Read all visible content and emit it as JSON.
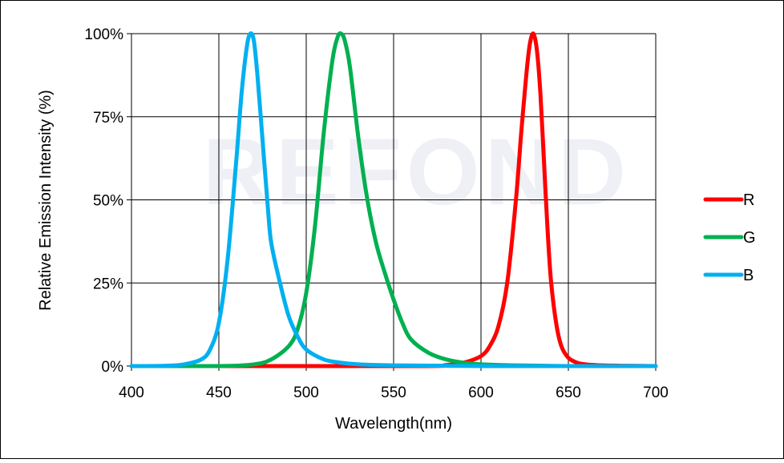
{
  "chart_data": {
    "type": "line",
    "title": "",
    "xlabel": "Wavelength(nm)",
    "ylabel": "Relative Emission Intensity (%)",
    "xlim": [
      400,
      700
    ],
    "ylim": [
      0,
      100
    ],
    "x_ticks": [
      400,
      450,
      500,
      550,
      600,
      650,
      700
    ],
    "x_tick_labels": [
      "400",
      "450",
      "500",
      "550",
      "600",
      "650",
      "700"
    ],
    "y_ticks": [
      0,
      25,
      50,
      75,
      100
    ],
    "y_tick_labels": [
      "0%",
      "25%",
      "50%",
      "75%",
      "100%"
    ],
    "grid": true,
    "legend_position": "right",
    "watermark": "REFOND",
    "series": [
      {
        "name": "R",
        "color": "#ff0000",
        "x": [
          400,
          560,
          580,
          590,
          600,
          605,
          610,
          615,
          620,
          623,
          626,
          628,
          630,
          632,
          634,
          636,
          638,
          640,
          643,
          646,
          650,
          655,
          660,
          670,
          680,
          700
        ],
        "y": [
          0,
          0,
          0.3,
          1,
          3,
          6,
          12,
          25,
          50,
          70,
          88,
          97,
          100,
          95,
          82,
          62,
          42,
          26,
          13,
          6,
          2.5,
          1,
          0.5,
          0.2,
          0.1,
          0
        ]
      },
      {
        "name": "G",
        "color": "#00b050",
        "x": [
          400,
          450,
          470,
          480,
          490,
          495,
          500,
          505,
          510,
          515,
          518,
          520,
          522,
          525,
          530,
          535,
          540,
          545,
          550,
          555,
          560,
          570,
          580,
          590,
          600,
          620,
          650,
          700
        ],
        "y": [
          0,
          0,
          0.5,
          2,
          6,
          11,
          22,
          42,
          70,
          92,
          99,
          100,
          98,
          90,
          68,
          50,
          37,
          28,
          20,
          13,
          8,
          4,
          2,
          1,
          0.5,
          0.2,
          0,
          0
        ]
      },
      {
        "name": "B",
        "color": "#00b0f0",
        "x": [
          400,
          420,
          430,
          440,
          445,
          450,
          455,
          460,
          463,
          466,
          468,
          470,
          472,
          475,
          478,
          480,
          485,
          490,
          495,
          500,
          510,
          520,
          530,
          550,
          600,
          700
        ],
        "y": [
          0,
          0.1,
          0.5,
          2,
          5,
          13,
          32,
          62,
          82,
          96,
          100,
          98,
          88,
          68,
          48,
          37,
          25,
          15,
          9,
          5,
          2,
          1,
          0.5,
          0.2,
          0,
          0
        ]
      }
    ]
  }
}
